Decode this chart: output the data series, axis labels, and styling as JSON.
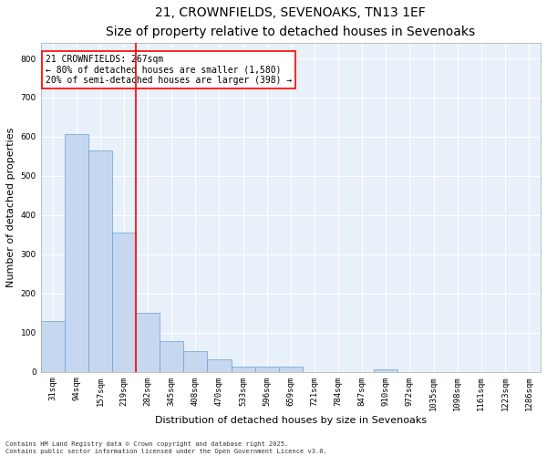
{
  "title1": "21, CROWNFIELDS, SEVENOAKS, TN13 1EF",
  "title2": "Size of property relative to detached houses in Sevenoaks",
  "xlabel": "Distribution of detached houses by size in Sevenoaks",
  "ylabel": "Number of detached properties",
  "categories": [
    "31sqm",
    "94sqm",
    "157sqm",
    "219sqm",
    "282sqm",
    "345sqm",
    "408sqm",
    "470sqm",
    "533sqm",
    "596sqm",
    "659sqm",
    "721sqm",
    "784sqm",
    "847sqm",
    "910sqm",
    "972sqm",
    "1035sqm",
    "1098sqm",
    "1161sqm",
    "1223sqm",
    "1286sqm"
  ],
  "values": [
    130,
    607,
    565,
    355,
    150,
    78,
    52,
    32,
    14,
    12,
    12,
    0,
    0,
    0,
    6,
    0,
    0,
    0,
    0,
    0,
    0
  ],
  "bar_color": "#c5d8f0",
  "bar_edge_color": "#6a9fd8",
  "vline_x": 3.5,
  "vline_color": "red",
  "annotation_text": "21 CROWNFIELDS: 267sqm\n← 80% of detached houses are smaller (1,580)\n20% of semi-detached houses are larger (398) →",
  "annotation_box_color": "red",
  "background_color": "#e8f0fa",
  "grid_color": "#ffffff",
  "fig_background": "#ffffff",
  "ylim": [
    0,
    840
  ],
  "yticks": [
    0,
    100,
    200,
    300,
    400,
    500,
    600,
    700,
    800
  ],
  "footer1": "Contains HM Land Registry data © Crown copyright and database right 2025.",
  "footer2": "Contains public sector information licensed under the Open Government Licence v3.0.",
  "title1_fontsize": 10,
  "title2_fontsize": 8.5,
  "tick_fontsize": 6.5,
  "ylabel_fontsize": 8,
  "xlabel_fontsize": 8,
  "annotation_fontsize": 7,
  "footer_fontsize": 5
}
